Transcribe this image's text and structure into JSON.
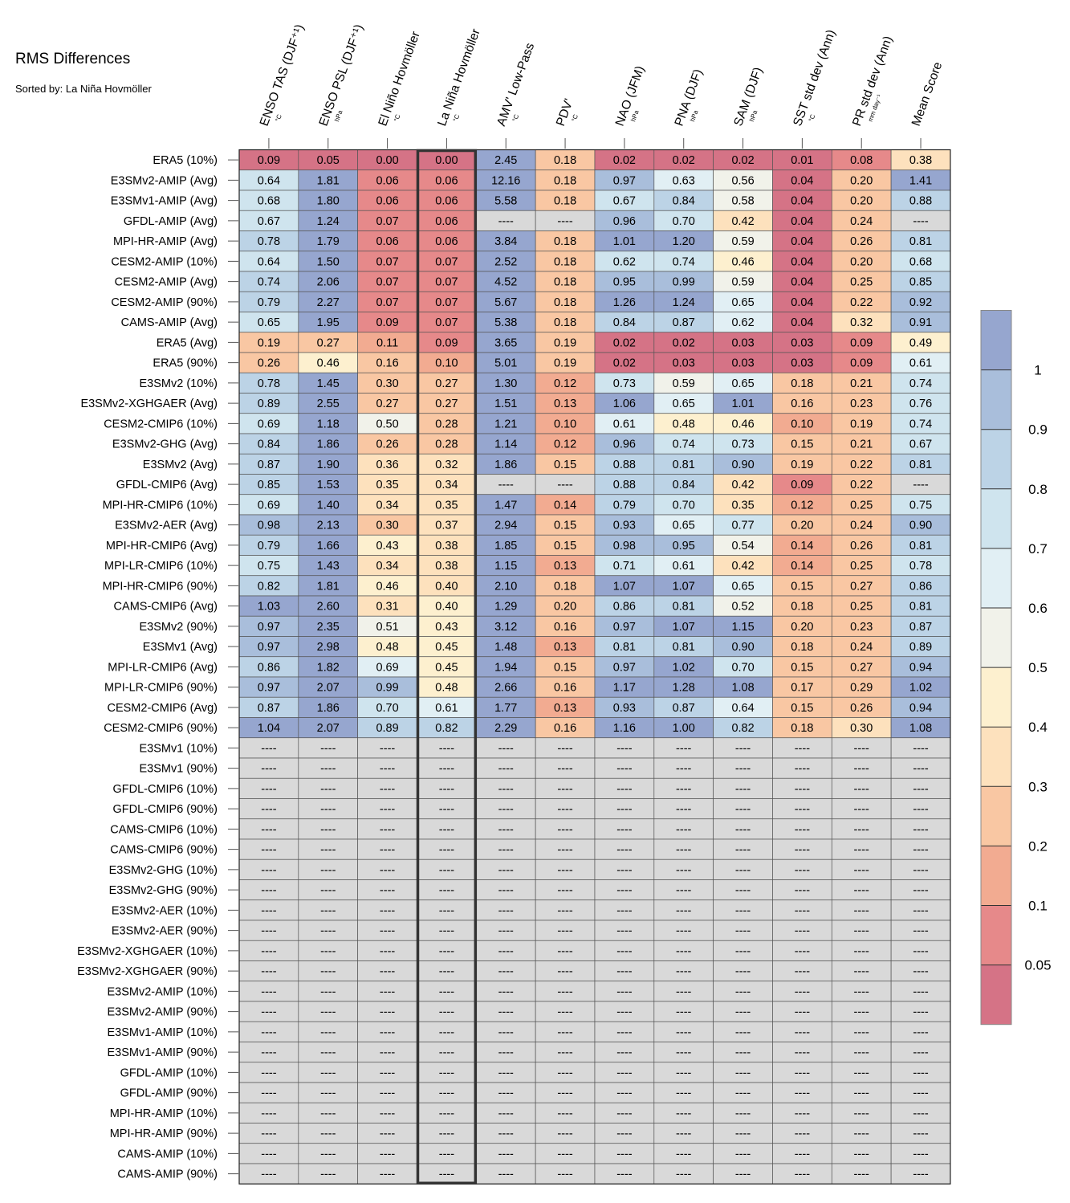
{
  "title": "RMS Differences",
  "subtitle": "Sorted by: La Niña Hovmöller",
  "chart_data": {
    "type": "heatmap",
    "columns": [
      {
        "label": "ENSO TAS (DJF⁺¹)",
        "unit": "°C"
      },
      {
        "label": "ENSO PSL (DJF⁺¹)",
        "unit": "hPa"
      },
      {
        "label": "El Niño Hovmöller",
        "unit": "°C"
      },
      {
        "label": "La Niña Hovmöller",
        "unit": "°C"
      },
      {
        "label": "AMV' Low-Pass",
        "unit": "°C"
      },
      {
        "label": "PDV'",
        "unit": "°C"
      },
      {
        "label": "NAO (JFM)",
        "unit": "hPa"
      },
      {
        "label": "PNA (DJF)",
        "unit": "hPa"
      },
      {
        "label": "SAM (DJF)",
        "unit": "hPa"
      },
      {
        "label": "SST std dev (Ann)",
        "unit": "°C"
      },
      {
        "label": "PR std dev (Ann)",
        "unit": "mm day⁻¹"
      },
      {
        "label": "Mean Score",
        "unit": ""
      }
    ],
    "highlighted_column": 3,
    "rows": [
      {
        "name": "ERA5 (10%)",
        "values": [
          "0.09",
          "0.05",
          "0.00",
          "0.00",
          "2.45",
          "0.18",
          "0.02",
          "0.02",
          "0.02",
          "0.01",
          "0.08",
          "0.38"
        ],
        "scores": [
          0.02,
          0.02,
          0.0,
          0.0,
          1.05,
          0.2,
          0.02,
          0.02,
          0.02,
          0.02,
          0.08,
          0.33
        ]
      },
      {
        "name": "E3SMv2-AMIP (Avg)",
        "values": [
          "0.64",
          "1.81",
          "0.06",
          "0.06",
          "12.16",
          "0.18",
          "0.97",
          "0.63",
          "0.56",
          "0.04",
          "0.20",
          "1.41"
        ],
        "scores": [
          0.75,
          1.05,
          0.05,
          0.05,
          1.05,
          0.2,
          0.95,
          0.65,
          0.57,
          0.03,
          0.22,
          1.05
        ]
      },
      {
        "name": "E3SMv1-AMIP (Avg)",
        "values": [
          "0.68",
          "1.80",
          "0.06",
          "0.06",
          "5.58",
          "0.18",
          "0.67",
          "0.84",
          "0.58",
          "0.04",
          "0.20",
          "0.88"
        ],
        "scores": [
          0.75,
          1.05,
          0.05,
          0.05,
          1.05,
          0.2,
          0.75,
          0.85,
          0.57,
          0.03,
          0.22,
          0.85
        ]
      },
      {
        "name": "GFDL-AMIP (Avg)",
        "values": [
          "0.67",
          "1.24",
          "0.07",
          "0.06",
          "----",
          "----",
          "0.96",
          "0.70",
          "0.42",
          "0.04",
          "0.24",
          "----"
        ],
        "scores": [
          0.75,
          1.05,
          0.07,
          0.05,
          null,
          null,
          0.95,
          0.75,
          0.37,
          0.03,
          0.25,
          null
        ]
      },
      {
        "name": "MPI-HR-AMIP (Avg)",
        "values": [
          "0.78",
          "1.79",
          "0.06",
          "0.06",
          "3.84",
          "0.18",
          "1.01",
          "1.20",
          "0.59",
          "0.04",
          "0.26",
          "0.81"
        ],
        "scores": [
          0.85,
          1.05,
          0.05,
          0.05,
          1.05,
          0.2,
          1.05,
          1.05,
          0.57,
          0.03,
          0.25,
          0.85
        ]
      },
      {
        "name": "CESM2-AMIP (10%)",
        "values": [
          "0.64",
          "1.50",
          "0.07",
          "0.07",
          "2.52",
          "0.18",
          "0.62",
          "0.74",
          "0.46",
          "0.04",
          "0.20",
          "0.68"
        ],
        "scores": [
          0.75,
          1.05,
          0.07,
          0.07,
          1.05,
          0.2,
          0.75,
          0.75,
          0.45,
          0.03,
          0.22,
          0.7
        ]
      },
      {
        "name": "CESM2-AMIP (Avg)",
        "values": [
          "0.74",
          "2.06",
          "0.07",
          "0.07",
          "4.52",
          "0.18",
          "0.95",
          "0.99",
          "0.59",
          "0.04",
          "0.25",
          "0.85"
        ],
        "scores": [
          0.85,
          1.05,
          0.07,
          0.07,
          1.05,
          0.2,
          0.95,
          0.95,
          0.57,
          0.03,
          0.25,
          0.85
        ]
      },
      {
        "name": "CESM2-AMIP (90%)",
        "values": [
          "0.79",
          "2.27",
          "0.07",
          "0.07",
          "5.67",
          "0.18",
          "1.26",
          "1.24",
          "0.65",
          "0.04",
          "0.22",
          "0.92"
        ],
        "scores": [
          0.85,
          1.05,
          0.07,
          0.07,
          1.05,
          0.2,
          1.05,
          1.05,
          0.65,
          0.03,
          0.22,
          0.95
        ]
      },
      {
        "name": "CAMS-AMIP (Avg)",
        "values": [
          "0.65",
          "1.95",
          "0.09",
          "0.07",
          "5.38",
          "0.18",
          "0.84",
          "0.87",
          "0.62",
          "0.04",
          "0.32",
          "0.91"
        ],
        "scores": [
          0.75,
          1.05,
          0.07,
          0.07,
          1.05,
          0.2,
          0.85,
          0.85,
          0.65,
          0.03,
          0.33,
          0.95
        ]
      },
      {
        "name": "ERA5 (Avg)",
        "values": [
          "0.19",
          "0.27",
          "0.11",
          "0.09",
          "3.65",
          "0.19",
          "0.02",
          "0.02",
          "0.03",
          "0.03",
          "0.09",
          "0.49"
        ],
        "scores": [
          0.22,
          0.28,
          0.15,
          0.07,
          1.05,
          0.2,
          0.02,
          0.02,
          0.02,
          0.02,
          0.07,
          0.45
        ]
      },
      {
        "name": "ERA5 (90%)",
        "values": [
          "0.26",
          "0.46",
          "0.16",
          "0.10",
          "5.01",
          "0.19",
          "0.02",
          "0.03",
          "0.03",
          "0.03",
          "0.09",
          "0.61"
        ],
        "scores": [
          0.25,
          0.45,
          0.2,
          0.15,
          1.05,
          0.2,
          0.02,
          0.02,
          0.02,
          0.02,
          0.07,
          0.65
        ]
      },
      {
        "name": "E3SMv2 (10%)",
        "values": [
          "0.78",
          "1.45",
          "0.30",
          "0.27",
          "1.30",
          "0.12",
          "0.73",
          "0.59",
          "0.65",
          "0.18",
          "0.21",
          "0.74"
        ],
        "scores": [
          0.85,
          1.05,
          0.28,
          0.28,
          1.05,
          0.15,
          0.75,
          0.57,
          0.65,
          0.2,
          0.22,
          0.75
        ]
      },
      {
        "name": "E3SMv2-XGHGAER (Avg)",
        "values": [
          "0.89",
          "2.55",
          "0.27",
          "0.27",
          "1.51",
          "0.13",
          "1.06",
          "0.65",
          "1.01",
          "0.16",
          "0.23",
          "0.76"
        ],
        "scores": [
          0.85,
          1.05,
          0.28,
          0.28,
          1.05,
          0.15,
          1.05,
          0.65,
          1.05,
          0.2,
          0.22,
          0.75
        ]
      },
      {
        "name": "CESM2-CMIP6 (10%)",
        "values": [
          "0.69",
          "1.18",
          "0.50",
          "0.28",
          "1.21",
          "0.10",
          "0.61",
          "0.48",
          "0.46",
          "0.10",
          "0.19",
          "0.74"
        ],
        "scores": [
          0.75,
          1.05,
          0.55,
          0.28,
          1.05,
          0.15,
          0.65,
          0.45,
          0.45,
          0.15,
          0.22,
          0.75
        ]
      },
      {
        "name": "E3SMv2-GHG (Avg)",
        "values": [
          "0.84",
          "1.86",
          "0.26",
          "0.28",
          "1.14",
          "0.12",
          "0.96",
          "0.74",
          "0.73",
          "0.15",
          "0.21",
          "0.67"
        ],
        "scores": [
          0.85,
          1.05,
          0.28,
          0.28,
          1.05,
          0.15,
          0.95,
          0.75,
          0.75,
          0.2,
          0.22,
          0.7
        ]
      },
      {
        "name": "E3SMv2 (Avg)",
        "values": [
          "0.87",
          "1.90",
          "0.36",
          "0.32",
          "1.86",
          "0.15",
          "0.88",
          "0.81",
          "0.90",
          "0.19",
          "0.22",
          "0.81"
        ],
        "scores": [
          0.85,
          1.05,
          0.33,
          0.33,
          1.05,
          0.2,
          0.85,
          0.85,
          0.95,
          0.2,
          0.22,
          0.85
        ]
      },
      {
        "name": "GFDL-CMIP6 (Avg)",
        "values": [
          "0.85",
          "1.53",
          "0.35",
          "0.34",
          "----",
          "----",
          "0.88",
          "0.84",
          "0.42",
          "0.09",
          "0.22",
          "----"
        ],
        "scores": [
          0.85,
          1.05,
          0.33,
          0.33,
          null,
          null,
          0.85,
          0.85,
          0.37,
          0.07,
          0.22,
          null
        ]
      },
      {
        "name": "MPI-HR-CMIP6 (10%)",
        "values": [
          "0.69",
          "1.40",
          "0.34",
          "0.35",
          "1.47",
          "0.14",
          "0.79",
          "0.70",
          "0.35",
          "0.12",
          "0.25",
          "0.75"
        ],
        "scores": [
          0.75,
          1.05,
          0.33,
          0.33,
          1.05,
          0.15,
          0.85,
          0.75,
          0.33,
          0.15,
          0.25,
          0.75
        ]
      },
      {
        "name": "E3SMv2-AER (Avg)",
        "values": [
          "0.98",
          "2.13",
          "0.30",
          "0.37",
          "2.94",
          "0.15",
          "0.93",
          "0.65",
          "0.77",
          "0.20",
          "0.24",
          "0.90"
        ],
        "scores": [
          0.95,
          1.05,
          0.28,
          0.37,
          1.05,
          0.2,
          0.95,
          0.65,
          0.75,
          0.22,
          0.25,
          0.95
        ]
      },
      {
        "name": "MPI-HR-CMIP6 (Avg)",
        "values": [
          "0.79",
          "1.66",
          "0.43",
          "0.38",
          "1.85",
          "0.15",
          "0.98",
          "0.95",
          "0.54",
          "0.14",
          "0.26",
          "0.81"
        ],
        "scores": [
          0.85,
          1.05,
          0.45,
          0.37,
          1.05,
          0.2,
          0.95,
          0.95,
          0.55,
          0.15,
          0.25,
          0.85
        ]
      },
      {
        "name": "MPI-LR-CMIP6 (10%)",
        "values": [
          "0.75",
          "1.43",
          "0.34",
          "0.38",
          "1.15",
          "0.13",
          "0.71",
          "0.61",
          "0.42",
          "0.14",
          "0.25",
          "0.78"
        ],
        "scores": [
          0.75,
          1.05,
          0.33,
          0.37,
          1.05,
          0.15,
          0.75,
          0.65,
          0.37,
          0.15,
          0.25,
          0.75
        ]
      },
      {
        "name": "MPI-HR-CMIP6 (90%)",
        "values": [
          "0.82",
          "1.81",
          "0.46",
          "0.40",
          "2.10",
          "0.18",
          "1.07",
          "1.07",
          "0.65",
          "0.15",
          "0.27",
          "0.86"
        ],
        "scores": [
          0.85,
          1.05,
          0.45,
          0.37,
          1.05,
          0.2,
          1.05,
          1.05,
          0.65,
          0.2,
          0.25,
          0.85
        ]
      },
      {
        "name": "CAMS-CMIP6 (Avg)",
        "values": [
          "1.03",
          "2.60",
          "0.31",
          "0.40",
          "1.29",
          "0.20",
          "0.86",
          "0.81",
          "0.52",
          "0.18",
          "0.25",
          "0.81"
        ],
        "scores": [
          1.05,
          1.05,
          0.33,
          0.45,
          1.05,
          0.22,
          0.85,
          0.85,
          0.55,
          0.2,
          0.25,
          0.85
        ]
      },
      {
        "name": "E3SMv2 (90%)",
        "values": [
          "0.97",
          "2.35",
          "0.51",
          "0.43",
          "3.12",
          "0.16",
          "0.97",
          "1.07",
          "1.15",
          "0.20",
          "0.23",
          "0.87"
        ],
        "scores": [
          0.95,
          1.05,
          0.55,
          0.45,
          1.05,
          0.2,
          0.95,
          1.05,
          1.05,
          0.22,
          0.25,
          0.85
        ]
      },
      {
        "name": "E3SMv1 (Avg)",
        "values": [
          "0.97",
          "2.98",
          "0.48",
          "0.45",
          "1.48",
          "0.13",
          "0.81",
          "0.81",
          "0.90",
          "0.18",
          "0.24",
          "0.89"
        ],
        "scores": [
          0.95,
          1.05,
          0.45,
          0.45,
          1.05,
          0.15,
          0.85,
          0.85,
          0.95,
          0.2,
          0.25,
          0.85
        ]
      },
      {
        "name": "MPI-LR-CMIP6 (Avg)",
        "values": [
          "0.86",
          "1.82",
          "0.69",
          "0.45",
          "1.94",
          "0.15",
          "0.97",
          "1.02",
          "0.70",
          "0.15",
          "0.27",
          "0.94"
        ],
        "scores": [
          0.85,
          1.05,
          0.65,
          0.45,
          1.05,
          0.2,
          0.95,
          1.05,
          0.75,
          0.2,
          0.25,
          0.95
        ]
      },
      {
        "name": "MPI-LR-CMIP6 (90%)",
        "values": [
          "0.97",
          "2.07",
          "0.99",
          "0.48",
          "2.66",
          "0.16",
          "1.17",
          "1.28",
          "1.08",
          "0.17",
          "0.29",
          "1.02"
        ],
        "scores": [
          0.95,
          1.05,
          0.95,
          0.45,
          1.05,
          0.2,
          1.05,
          1.05,
          1.05,
          0.2,
          0.25,
          1.05
        ]
      },
      {
        "name": "CESM2-CMIP6 (Avg)",
        "values": [
          "0.87",
          "1.86",
          "0.70",
          "0.61",
          "1.77",
          "0.13",
          "0.93",
          "0.87",
          "0.64",
          "0.15",
          "0.26",
          "0.94"
        ],
        "scores": [
          0.85,
          1.05,
          0.75,
          0.65,
          1.05,
          0.15,
          0.95,
          0.85,
          0.65,
          0.2,
          0.25,
          0.95
        ]
      },
      {
        "name": "CESM2-CMIP6 (90%)",
        "values": [
          "1.04",
          "2.07",
          "0.89",
          "0.82",
          "2.29",
          "0.16",
          "1.16",
          "1.00",
          "0.82",
          "0.18",
          "0.30",
          "1.08"
        ],
        "scores": [
          1.05,
          1.05,
          0.85,
          0.85,
          1.05,
          0.2,
          1.05,
          1.05,
          0.85,
          0.2,
          0.33,
          1.05
        ]
      },
      {
        "name": "E3SMv1 (10%)",
        "values": null
      },
      {
        "name": "E3SMv1 (90%)",
        "values": null
      },
      {
        "name": "GFDL-CMIP6 (10%)",
        "values": null
      },
      {
        "name": "GFDL-CMIP6 (90%)",
        "values": null
      },
      {
        "name": "CAMS-CMIP6 (10%)",
        "values": null
      },
      {
        "name": "CAMS-CMIP6 (90%)",
        "values": null
      },
      {
        "name": "E3SMv2-GHG (10%)",
        "values": null
      },
      {
        "name": "E3SMv2-GHG (90%)",
        "values": null
      },
      {
        "name": "E3SMv2-AER (10%)",
        "values": null
      },
      {
        "name": "E3SMv2-AER (90%)",
        "values": null
      },
      {
        "name": "E3SMv2-XGHGAER (10%)",
        "values": null
      },
      {
        "name": "E3SMv2-XGHGAER (90%)",
        "values": null
      },
      {
        "name": "E3SMv2-AMIP (10%)",
        "values": null
      },
      {
        "name": "E3SMv2-AMIP (90%)",
        "values": null
      },
      {
        "name": "E3SMv1-AMIP (10%)",
        "values": null
      },
      {
        "name": "E3SMv1-AMIP (90%)",
        "values": null
      },
      {
        "name": "GFDL-AMIP (10%)",
        "values": null
      },
      {
        "name": "GFDL-AMIP (90%)",
        "values": null
      },
      {
        "name": "MPI-HR-AMIP (10%)",
        "values": null
      },
      {
        "name": "MPI-HR-AMIP (90%)",
        "values": null
      },
      {
        "name": "CAMS-AMIP (10%)",
        "values": null
      },
      {
        "name": "CAMS-AMIP (90%)",
        "values": null
      }
    ],
    "missing_label": "----",
    "colorbar": {
      "tick_labels": [
        "1",
        "0.9",
        "0.8",
        "0.7",
        "0.6",
        "0.5",
        "0.4",
        "0.3",
        "0.2",
        "0.1",
        "0.05"
      ],
      "colors_top_to_bottom": [
        "#96a6cf",
        "#a9bedb",
        "#bcd3e6",
        "#cfe4ee",
        "#e1eff4",
        "#f1f2ea",
        "#fdf0cf",
        "#fde1bd",
        "#f9c7a3",
        "#f2ab91",
        "#e6898a",
        "#d57386"
      ]
    },
    "missing_color": "#d9d9d9"
  }
}
